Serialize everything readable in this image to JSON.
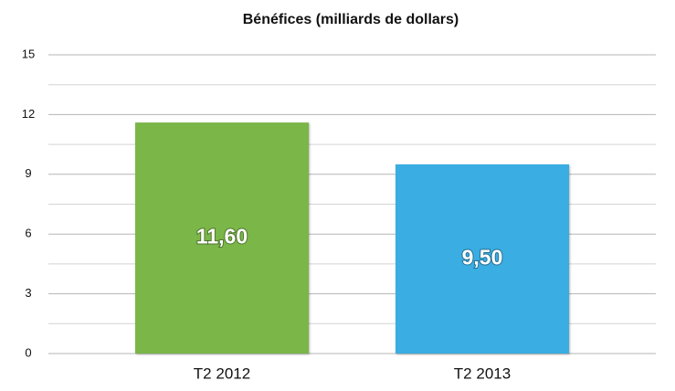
{
  "chart_data": {
    "type": "bar",
    "title": "Bénéfices (milliards de dollars)",
    "categories": [
      "T2 2012",
      "T2 2013"
    ],
    "values": [
      11.6,
      9.5
    ],
    "value_labels": [
      "11,60",
      "9,50"
    ],
    "colors": [
      "#7ab648",
      "#3aade2"
    ],
    "ylim": [
      0,
      15
    ],
    "yticks": [
      0,
      3,
      6,
      9,
      12,
      15
    ],
    "minor_yticks": [
      1.5,
      4.5,
      7.5,
      10.5,
      13.5
    ],
    "grid": true
  }
}
